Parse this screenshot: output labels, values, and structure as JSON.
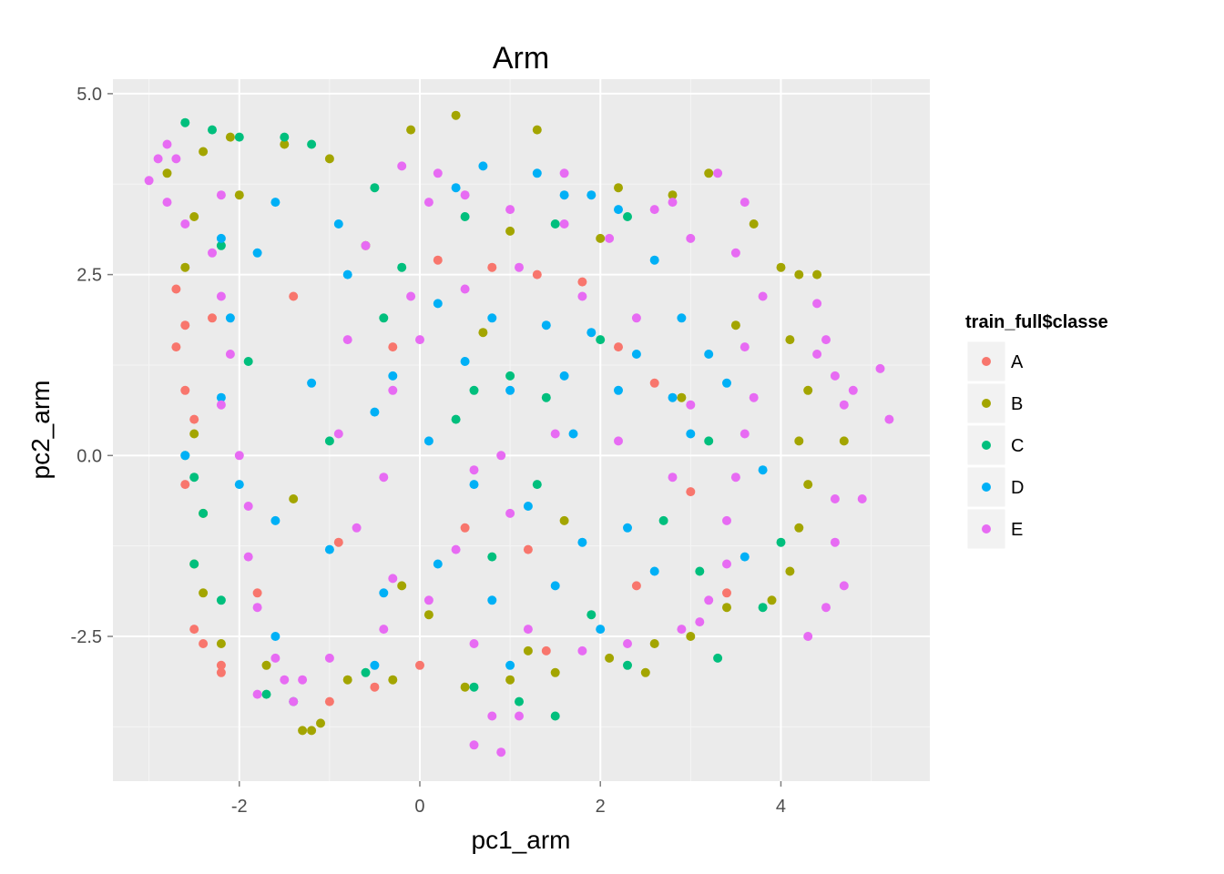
{
  "chart_data": {
    "type": "scatter",
    "title": "Arm",
    "xlabel": "pc1_arm",
    "ylabel": "pc2_arm",
    "xlim": [
      -3.4,
      5.65
    ],
    "ylim": [
      -4.5,
      5.2
    ],
    "x_ticks": [
      -2,
      0,
      2,
      4
    ],
    "y_ticks": [
      -2.5,
      0.0,
      2.5,
      5.0
    ],
    "x_tick_labels": [
      "-2",
      "0",
      "2",
      "4"
    ],
    "y_tick_labels": [
      "-2.5",
      "0.0",
      "2.5",
      "5.0"
    ],
    "grid": true,
    "legend_title": "train_full$classe",
    "legend_position": "right",
    "background": "#ebebeb",
    "series": [
      {
        "name": "A",
        "color": "#F8766D",
        "points": [
          [
            -2.7,
            2.3
          ],
          [
            -2.6,
            1.8
          ],
          [
            -2.7,
            1.5
          ],
          [
            -2.6,
            0.9
          ],
          [
            -2.5,
            0.5
          ],
          [
            -2.5,
            -2.4
          ],
          [
            -2.4,
            -2.6
          ],
          [
            -2.2,
            -2.9
          ],
          [
            -2.2,
            -3.0
          ],
          [
            -2.6,
            -0.4
          ],
          [
            -1.0,
            -3.4
          ],
          [
            -1.8,
            -1.9
          ],
          [
            -0.5,
            -3.2
          ],
          [
            0.2,
            2.7
          ],
          [
            0.8,
            2.6
          ],
          [
            1.3,
            2.5
          ],
          [
            1.8,
            2.4
          ],
          [
            2.2,
            1.5
          ],
          [
            2.6,
            1.0
          ],
          [
            3.0,
            -0.5
          ],
          [
            1.4,
            -2.7
          ],
          [
            0.0,
            -2.9
          ],
          [
            -0.9,
            -1.2
          ],
          [
            1.2,
            -1.3
          ],
          [
            -1.4,
            2.2
          ],
          [
            -0.3,
            1.5
          ],
          [
            2.4,
            -1.8
          ],
          [
            3.4,
            -1.9
          ],
          [
            0.5,
            -1.0
          ],
          [
            -2.3,
            1.9
          ]
        ]
      },
      {
        "name": "B",
        "color": "#A3A500",
        "points": [
          [
            -2.8,
            3.9
          ],
          [
            -2.4,
            4.2
          ],
          [
            -2.1,
            4.4
          ],
          [
            -1.5,
            4.3
          ],
          [
            -1.0,
            4.1
          ],
          [
            -0.1,
            4.5
          ],
          [
            0.4,
            4.7
          ],
          [
            1.3,
            4.5
          ],
          [
            2.2,
            3.7
          ],
          [
            2.8,
            3.6
          ],
          [
            3.2,
            3.9
          ],
          [
            3.7,
            3.2
          ],
          [
            4.0,
            2.6
          ],
          [
            4.2,
            2.5
          ],
          [
            4.1,
            1.6
          ],
          [
            4.3,
            0.9
          ],
          [
            4.2,
            0.2
          ],
          [
            4.3,
            -0.4
          ],
          [
            4.2,
            -1.0
          ],
          [
            4.1,
            -1.6
          ],
          [
            3.9,
            -2.0
          ],
          [
            3.4,
            -2.1
          ],
          [
            3.0,
            -2.5
          ],
          [
            2.6,
            -2.6
          ],
          [
            2.1,
            -2.8
          ],
          [
            1.5,
            -3.0
          ],
          [
            1.0,
            -3.1
          ],
          [
            0.5,
            -3.2
          ],
          [
            -0.3,
            -3.1
          ],
          [
            -0.8,
            -3.1
          ],
          [
            -1.2,
            -3.8
          ],
          [
            -1.3,
            -3.8
          ],
          [
            -1.1,
            -3.7
          ],
          [
            -1.7,
            -2.9
          ],
          [
            -2.2,
            -2.6
          ],
          [
            -2.4,
            -1.9
          ],
          [
            -2.5,
            -1.5
          ],
          [
            -2.4,
            -0.8
          ],
          [
            -2.5,
            0.3
          ],
          [
            -2.6,
            2.6
          ],
          [
            -2.5,
            3.3
          ],
          [
            -0.6,
            2.9
          ],
          [
            1.0,
            3.1
          ],
          [
            2.0,
            3.0
          ],
          [
            0.7,
            1.7
          ],
          [
            -1.4,
            -0.6
          ],
          [
            1.6,
            -0.9
          ],
          [
            2.9,
            0.8
          ],
          [
            -0.2,
            -1.8
          ],
          [
            3.5,
            1.8
          ],
          [
            4.4,
            2.5
          ],
          [
            4.7,
            0.2
          ],
          [
            -2.0,
            3.6
          ],
          [
            1.2,
            -2.7
          ],
          [
            2.5,
            -3.0
          ],
          [
            0.1,
            -2.2
          ]
        ]
      },
      {
        "name": "C",
        "color": "#00BF7D",
        "points": [
          [
            -2.6,
            4.6
          ],
          [
            -2.3,
            4.5
          ],
          [
            -2.0,
            4.4
          ],
          [
            -1.5,
            4.4
          ],
          [
            -1.2,
            4.3
          ],
          [
            -0.5,
            3.7
          ],
          [
            0.5,
            3.3
          ],
          [
            1.5,
            3.2
          ],
          [
            2.3,
            3.3
          ],
          [
            -2.6,
            0.0
          ],
          [
            -2.5,
            -0.3
          ],
          [
            -2.4,
            -0.8
          ],
          [
            -2.5,
            -1.5
          ],
          [
            -2.2,
            -2.0
          ],
          [
            -1.7,
            -3.3
          ],
          [
            -1.4,
            -3.4
          ],
          [
            -0.6,
            -3.0
          ],
          [
            0.6,
            -3.2
          ],
          [
            1.1,
            -3.4
          ],
          [
            1.5,
            -3.6
          ],
          [
            2.3,
            -2.9
          ],
          [
            3.3,
            -2.8
          ],
          [
            3.8,
            -2.1
          ],
          [
            4.0,
            -1.2
          ],
          [
            0.6,
            0.9
          ],
          [
            1.0,
            1.1
          ],
          [
            1.4,
            0.8
          ],
          [
            0.4,
            0.5
          ],
          [
            -0.4,
            1.9
          ],
          [
            2.0,
            1.6
          ],
          [
            -1.0,
            0.2
          ],
          [
            1.3,
            -0.4
          ],
          [
            2.7,
            -0.9
          ],
          [
            -1.9,
            1.3
          ],
          [
            0.8,
            -1.4
          ],
          [
            3.2,
            0.2
          ],
          [
            -0.2,
            2.6
          ],
          [
            3.1,
            -1.6
          ],
          [
            1.9,
            -2.2
          ],
          [
            -2.2,
            2.9
          ]
        ]
      },
      {
        "name": "D",
        "color": "#00B0F6",
        "points": [
          [
            -2.6,
            0.0
          ],
          [
            1.3,
            3.9
          ],
          [
            0.7,
            4.0
          ],
          [
            1.6,
            3.6
          ],
          [
            1.9,
            3.6
          ],
          [
            2.2,
            3.4
          ],
          [
            -0.8,
            2.5
          ],
          [
            0.2,
            2.1
          ],
          [
            0.8,
            1.9
          ],
          [
            1.4,
            1.8
          ],
          [
            1.9,
            1.7
          ],
          [
            2.4,
            1.4
          ],
          [
            2.8,
            0.8
          ],
          [
            3.0,
            0.3
          ],
          [
            -0.3,
            1.1
          ],
          [
            0.5,
            1.3
          ],
          [
            1.0,
            0.9
          ],
          [
            1.6,
            1.1
          ],
          [
            2.2,
            0.9
          ],
          [
            -1.2,
            1.0
          ],
          [
            -0.5,
            0.6
          ],
          [
            0.1,
            0.2
          ],
          [
            0.6,
            -0.4
          ],
          [
            1.2,
            -0.7
          ],
          [
            1.8,
            -1.2
          ],
          [
            2.3,
            -1.0
          ],
          [
            2.6,
            -1.6
          ],
          [
            1.5,
            -1.8
          ],
          [
            0.8,
            -2.0
          ],
          [
            0.2,
            -1.5
          ],
          [
            -0.4,
            -1.9
          ],
          [
            -1.0,
            -1.3
          ],
          [
            -1.6,
            -0.9
          ],
          [
            -2.0,
            -0.4
          ],
          [
            -2.2,
            0.8
          ],
          [
            -2.1,
            1.9
          ],
          [
            -1.8,
            2.8
          ],
          [
            -2.2,
            3.0
          ],
          [
            -1.6,
            3.5
          ],
          [
            -0.9,
            3.2
          ],
          [
            0.4,
            3.7
          ],
          [
            2.6,
            2.7
          ],
          [
            2.9,
            1.9
          ],
          [
            3.4,
            1.0
          ],
          [
            3.8,
            -0.2
          ],
          [
            3.6,
            -1.4
          ],
          [
            1.0,
            -2.9
          ],
          [
            -0.5,
            -2.9
          ],
          [
            -1.6,
            -2.5
          ],
          [
            2.0,
            -2.4
          ],
          [
            3.2,
            1.4
          ],
          [
            1.7,
            0.3
          ]
        ]
      },
      {
        "name": "E",
        "color": "#E76BF3",
        "points": [
          [
            -2.9,
            4.1
          ],
          [
            -2.8,
            4.3
          ],
          [
            -2.7,
            4.1
          ],
          [
            -3.0,
            3.8
          ],
          [
            -2.8,
            3.5
          ],
          [
            -2.6,
            3.2
          ],
          [
            -2.2,
            3.6
          ],
          [
            -2.3,
            2.8
          ],
          [
            -2.2,
            2.2
          ],
          [
            -2.1,
            1.4
          ],
          [
            -2.2,
            0.7
          ],
          [
            -2.0,
            0.0
          ],
          [
            -1.9,
            -0.7
          ],
          [
            -1.9,
            -1.4
          ],
          [
            -1.8,
            -2.1
          ],
          [
            -1.6,
            -2.8
          ],
          [
            -1.5,
            -3.1
          ],
          [
            -1.4,
            -3.4
          ],
          [
            -1.0,
            -2.8
          ],
          [
            -0.4,
            -2.4
          ],
          [
            -0.3,
            -1.7
          ],
          [
            -0.7,
            -1.0
          ],
          [
            -0.4,
            -0.3
          ],
          [
            -0.9,
            0.3
          ],
          [
            -0.3,
            0.9
          ],
          [
            -0.8,
            1.6
          ],
          [
            -0.1,
            2.2
          ],
          [
            -0.6,
            2.9
          ],
          [
            0.1,
            3.5
          ],
          [
            -0.2,
            4.0
          ],
          [
            0.5,
            3.6
          ],
          [
            1.0,
            3.4
          ],
          [
            1.6,
            3.2
          ],
          [
            2.1,
            3.0
          ],
          [
            2.6,
            3.4
          ],
          [
            3.0,
            3.0
          ],
          [
            3.3,
            3.9
          ],
          [
            3.6,
            3.5
          ],
          [
            3.5,
            2.8
          ],
          [
            3.8,
            2.2
          ],
          [
            3.6,
            1.5
          ],
          [
            3.7,
            0.8
          ],
          [
            3.6,
            0.3
          ],
          [
            3.5,
            -0.3
          ],
          [
            3.4,
            -0.9
          ],
          [
            3.4,
            -1.5
          ],
          [
            3.2,
            -2.0
          ],
          [
            2.9,
            -2.4
          ],
          [
            2.3,
            -2.6
          ],
          [
            1.8,
            -2.7
          ],
          [
            1.2,
            -2.4
          ],
          [
            0.6,
            -2.6
          ],
          [
            0.1,
            -2.0
          ],
          [
            0.4,
            -1.3
          ],
          [
            1.0,
            -0.8
          ],
          [
            0.9,
            0.0
          ],
          [
            1.5,
            0.3
          ],
          [
            2.2,
            0.2
          ],
          [
            2.8,
            -0.3
          ],
          [
            3.0,
            0.7
          ],
          [
            2.4,
            1.9
          ],
          [
            1.8,
            2.2
          ],
          [
            1.1,
            2.6
          ],
          [
            0.5,
            2.3
          ],
          [
            0.0,
            1.6
          ],
          [
            0.6,
            -0.2
          ],
          [
            4.4,
            2.1
          ],
          [
            4.5,
            1.6
          ],
          [
            4.6,
            1.1
          ],
          [
            4.8,
            0.9
          ],
          [
            5.1,
            1.2
          ],
          [
            5.2,
            0.5
          ],
          [
            4.7,
            0.7
          ],
          [
            4.6,
            -0.6
          ],
          [
            4.9,
            -0.6
          ],
          [
            4.6,
            -1.2
          ],
          [
            4.5,
            -2.1
          ],
          [
            4.3,
            -2.5
          ],
          [
            4.7,
            -1.8
          ],
          [
            4.4,
            1.4
          ],
          [
            0.6,
            -4.0
          ],
          [
            0.9,
            -4.1
          ],
          [
            0.8,
            -3.6
          ],
          [
            1.1,
            -3.6
          ],
          [
            -1.8,
            -3.3
          ],
          [
            -1.3,
            -3.1
          ],
          [
            3.1,
            -2.3
          ],
          [
            1.6,
            3.9
          ],
          [
            0.2,
            3.9
          ],
          [
            2.8,
            3.5
          ]
        ]
      }
    ]
  }
}
